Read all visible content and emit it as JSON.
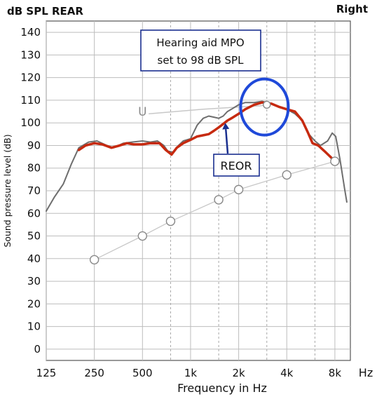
{
  "chart_data": {
    "type": "line",
    "title": "dB SPL REAR",
    "ear_label": "Right",
    "xlabel": "Frequency in Hz",
    "x_unit": "Hz",
    "ylabel": "Sound pressure level (dB)",
    "x_scale": "log",
    "xlim": [
      125,
      10000
    ],
    "ylim": [
      -5,
      145
    ],
    "x_ticks": [
      125,
      250,
      500,
      1000,
      2000,
      4000,
      8000
    ],
    "x_tick_labels": [
      "125",
      "250",
      "500",
      "1k",
      "2k",
      "4k",
      "8k"
    ],
    "x_minor_ticks": [
      750,
      1500,
      3000,
      6000
    ],
    "y_ticks": [
      0,
      10,
      20,
      30,
      40,
      50,
      60,
      70,
      80,
      90,
      100,
      110,
      120,
      130,
      140
    ],
    "grid": true,
    "colors": {
      "reor": "#c62a10",
      "gray": "#6e6e6e",
      "light": "#c8c8c8",
      "marker": "#888888",
      "highlight": "#1f49d9",
      "annotation": "#1a2f8f"
    },
    "series": [
      {
        "key": "gray",
        "values": [
          [
            125,
            61
          ],
          [
            140,
            67
          ],
          [
            160,
            73
          ],
          [
            180,
            82
          ],
          [
            200,
            89
          ],
          [
            230,
            91.5
          ],
          [
            260,
            92
          ],
          [
            300,
            90
          ],
          [
            330,
            89
          ],
          [
            380,
            91
          ],
          [
            430,
            91.5
          ],
          [
            500,
            92
          ],
          [
            560,
            91.5
          ],
          [
            620,
            92
          ],
          [
            680,
            90
          ],
          [
            720,
            87.5
          ],
          [
            780,
            87
          ],
          [
            840,
            90
          ],
          [
            900,
            92
          ],
          [
            1000,
            93
          ],
          [
            1100,
            99
          ],
          [
            1200,
            102
          ],
          [
            1300,
            103
          ],
          [
            1400,
            102.5
          ],
          [
            1500,
            102
          ],
          [
            1600,
            103
          ],
          [
            1700,
            105
          ],
          [
            1800,
            106
          ],
          [
            2000,
            108
          ],
          [
            2200,
            109
          ],
          [
            2500,
            109
          ],
          [
            2800,
            109.5
          ],
          [
            3200,
            108.5
          ],
          [
            3600,
            107
          ],
          [
            4000,
            106
          ],
          [
            4500,
            104
          ],
          [
            5000,
            101
          ],
          [
            5500,
            95
          ],
          [
            6000,
            92
          ],
          [
            6500,
            90
          ],
          [
            7200,
            92
          ],
          [
            7700,
            95.5
          ],
          [
            8100,
            94
          ],
          [
            8600,
            84
          ],
          [
            9200,
            71
          ],
          [
            9500,
            65
          ]
        ]
      },
      {
        "key": "reor",
        "name": "REOR",
        "values": [
          [
            200,
            88
          ],
          [
            220,
            90
          ],
          [
            250,
            91
          ],
          [
            280,
            90.5
          ],
          [
            320,
            89
          ],
          [
            360,
            90
          ],
          [
            400,
            91
          ],
          [
            440,
            90.5
          ],
          [
            500,
            90.5
          ],
          [
            560,
            91
          ],
          [
            640,
            91
          ],
          [
            700,
            88
          ],
          [
            760,
            86
          ],
          [
            820,
            89
          ],
          [
            900,
            91
          ],
          [
            1000,
            92.5
          ],
          [
            1100,
            94
          ],
          [
            1200,
            94.5
          ],
          [
            1300,
            95
          ],
          [
            1400,
            96.5
          ],
          [
            1500,
            98
          ],
          [
            1600,
            99.5
          ],
          [
            1700,
            101
          ],
          [
            1800,
            102
          ],
          [
            2000,
            104
          ],
          [
            2200,
            106
          ],
          [
            2500,
            108
          ],
          [
            2800,
            109
          ],
          [
            3200,
            108.5
          ],
          [
            3600,
            107
          ],
          [
            4000,
            106
          ],
          [
            4500,
            105
          ],
          [
            5000,
            101
          ],
          [
            5400,
            96
          ],
          [
            5800,
            91
          ],
          [
            6300,
            90
          ],
          [
            7000,
            87
          ],
          [
            7500,
            85
          ],
          [
            8000,
            83
          ],
          [
            8300,
            82
          ]
        ]
      },
      {
        "key": "light",
        "values": [
          [
            250,
            39.5
          ],
          [
            500,
            50
          ],
          [
            750,
            56.5
          ],
          [
            1500,
            66
          ],
          [
            2000,
            70.5
          ],
          [
            4000,
            77
          ],
          [
            8000,
            83
          ]
        ],
        "markers": true
      },
      {
        "key": "light_curve",
        "values": [
          [
            550,
            104
          ],
          [
            800,
            105
          ],
          [
            1200,
            106
          ],
          [
            2000,
            107
          ],
          [
            2700,
            107.5
          ],
          [
            3000,
            108
          ]
        ]
      }
    ],
    "marker_U": {
      "x": 500,
      "y": 105,
      "label": "U"
    },
    "marker_peak": {
      "x": 3000,
      "y": 108
    },
    "annotations": {
      "mpo_box_line1": "Hearing aid MPO",
      "mpo_box_line2": "set to 98 dB SPL",
      "reor_box": "REOR",
      "highlight_circle": {
        "x": 2900,
        "y": 107
      },
      "arrow_target": {
        "x": 1650,
        "y": 100
      }
    }
  }
}
